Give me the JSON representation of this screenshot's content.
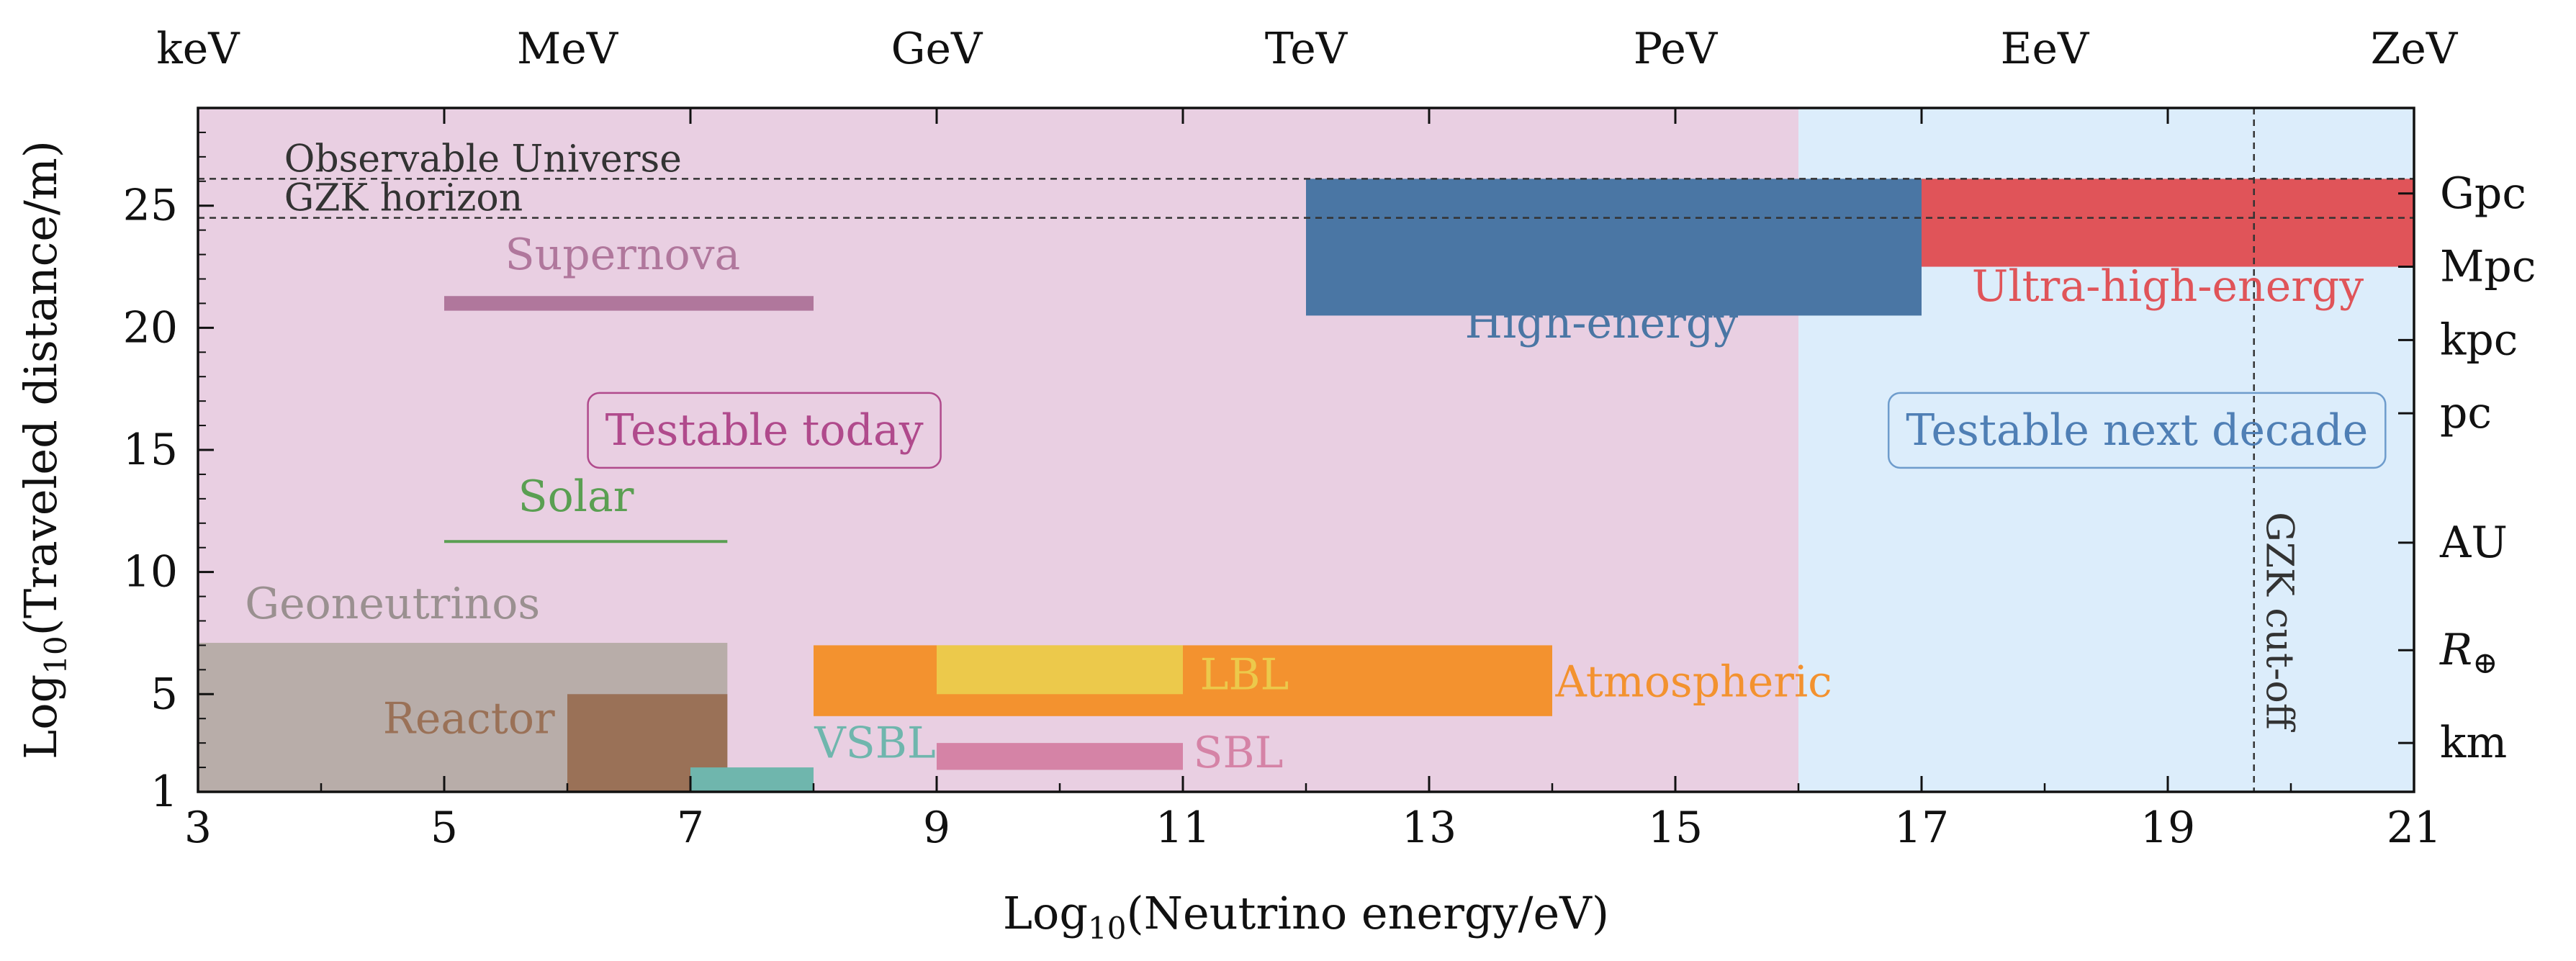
{
  "chart_data": {
    "type": "range-plot",
    "xlabel_prefix": "Log",
    "xlabel_sub": "10",
    "xlabel_suffix": "(Neutrino energy/eV)",
    "ylabel_prefix": "Log",
    "ylabel_sub": "10",
    "ylabel_suffix": "(Traveled distance/m)",
    "xlim": [
      3,
      21
    ],
    "ylim": [
      1,
      29
    ],
    "x_ticks": [
      "3",
      "5",
      "7",
      "9",
      "11",
      "13",
      "15",
      "17",
      "19",
      "21"
    ],
    "x_tick_values": [
      3,
      5,
      7,
      9,
      11,
      13,
      15,
      17,
      19,
      21
    ],
    "y_ticks": [
      "1",
      "5",
      "10",
      "15",
      "20",
      "25"
    ],
    "y_tick_values": [
      1,
      5,
      10,
      15,
      20,
      25
    ],
    "top_axis": [
      {
        "label": "keV",
        "x": 3
      },
      {
        "label": "MeV",
        "x": 6
      },
      {
        "label": "GeV",
        "x": 9
      },
      {
        "label": "TeV",
        "x": 12
      },
      {
        "label": "PeV",
        "x": 15
      },
      {
        "label": "EeV",
        "x": 18
      },
      {
        "label": "ZeV",
        "x": 21
      }
    ],
    "right_axis": [
      {
        "label": "Gpc",
        "y": 25.5
      },
      {
        "label": "Mpc",
        "y": 22.5
      },
      {
        "label": "kpc",
        "y": 19.5
      },
      {
        "label": "pc",
        "y": 16.5
      },
      {
        "label": "AU",
        "y": 11.2
      },
      {
        "label": "R",
        "sub": "⊕",
        "y": 6.8
      },
      {
        "label": "km",
        "y": 3
      }
    ],
    "regions": [
      {
        "name": "Testable today",
        "x": [
          3,
          16
        ],
        "color": "#e9cfe2",
        "label_x": 7.6,
        "label_y": 15.8,
        "label_color": "#b04a8c",
        "border": "#b04a8c"
      },
      {
        "name": "Testable next decade",
        "x": [
          16,
          21
        ],
        "color": "#dcedfb",
        "label_x": 18.75,
        "label_y": 15.8,
        "label_color": "#4f7fb5",
        "border": "#6e9ccc"
      }
    ],
    "reference_lines": [
      {
        "label": "Observable Universe",
        "y": 26.1
      },
      {
        "label": "GZK horizon",
        "y": 24.5
      },
      {
        "label": "GZK cut-off",
        "x": 19.7
      }
    ],
    "bands": [
      {
        "name": "High-energy",
        "x": [
          12,
          17
        ],
        "y": [
          20.5,
          26.1
        ],
        "color": "#4a76a4",
        "label_x": 14.4,
        "label_y": 19.6,
        "label_color": "#4a76a4"
      },
      {
        "name": "Ultra-high-energy",
        "x": [
          17,
          21
        ],
        "y": [
          22.5,
          26.1
        ],
        "color": "#e05459",
        "label_x": 19.0,
        "label_y": 21.1,
        "label_color": "#e05459"
      },
      {
        "name": "Supernova",
        "x": [
          5,
          8
        ],
        "y": [
          20.7,
          21.3
        ],
        "color": "#b0779c",
        "label_x": 6.45,
        "label_y": 22.4,
        "label_color": "#b0779c"
      },
      {
        "name": "Solar",
        "x": [
          5,
          7.3
        ],
        "y": [
          11.2,
          11.3
        ],
        "color": "#5a9f52",
        "label_x": 6.07,
        "label_y": 12.5,
        "label_color": "#5a9f52"
      },
      {
        "name": "Geoneutrinos",
        "x": [
          3,
          7.3
        ],
        "y": [
          1,
          7.1
        ],
        "color": "#b8ada9",
        "label_x": 4.58,
        "label_y": 8.1,
        "label_color": "#9a9090"
      },
      {
        "name": "Reactor",
        "x": [
          6,
          7.3
        ],
        "y": [
          1,
          5
        ],
        "color": "#9a7157",
        "label_x": 5.2,
        "label_y": 3.4,
        "label_color": "#9a7157"
      },
      {
        "name": "VSBL",
        "x": [
          7,
          8
        ],
        "y": [
          1,
          2
        ],
        "color": "#6fb6ad",
        "label_x": 8.5,
        "label_y": 2.4,
        "label_color": "#6fb6ad"
      },
      {
        "name": "Atmospheric",
        "x": [
          8,
          14
        ],
        "y": [
          4.1,
          7
        ],
        "color": "#f3922f",
        "label_x": 15.15,
        "label_y": 4.9,
        "label_color": "#f3922f"
      },
      {
        "name": "LBL",
        "x": [
          9,
          11
        ],
        "y": [
          5,
          7
        ],
        "color": "#ecc94b",
        "label_x": 11.5,
        "label_y": 5.2,
        "label_color": "#ecc94b"
      },
      {
        "name": "SBL",
        "x": [
          9,
          11
        ],
        "y": [
          1.9,
          3
        ],
        "color": "#d583a6",
        "label_x": 11.45,
        "label_y": 2.0,
        "label_color": "#d583a6"
      }
    ]
  }
}
